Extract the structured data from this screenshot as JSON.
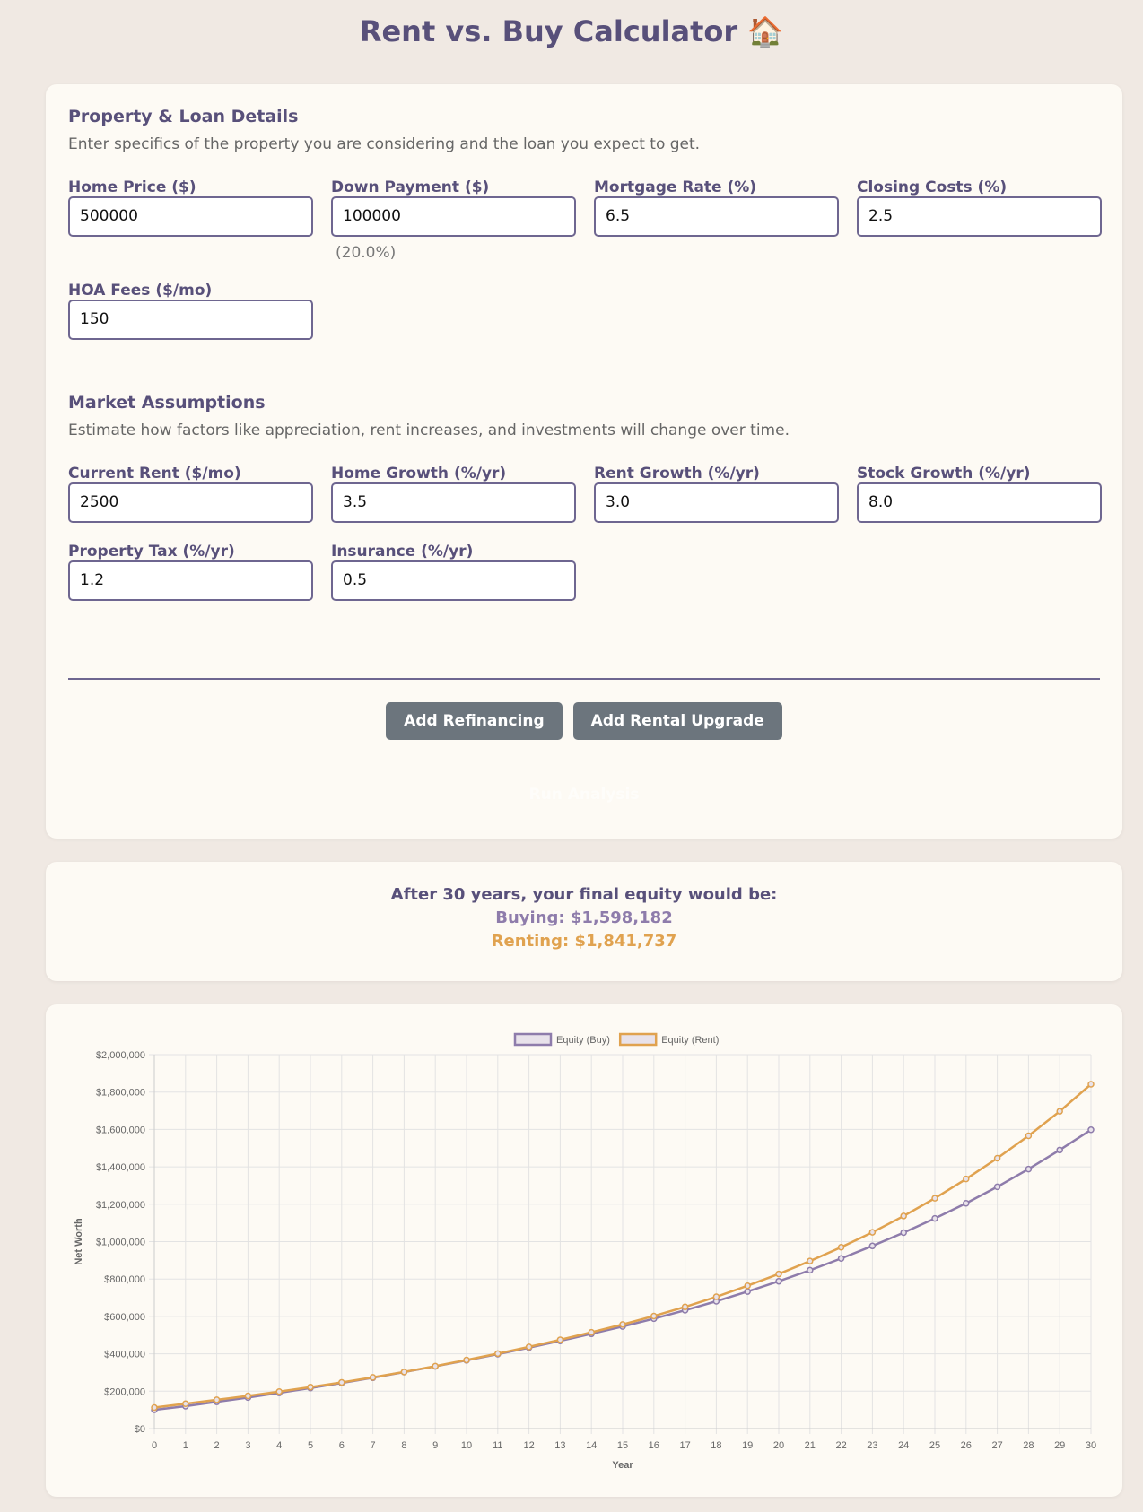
{
  "header": {
    "title": "Rent vs. Buy Calculator 🏠"
  },
  "sections": [
    {
      "title": "Property & Loan Details",
      "description": "Enter specifics of the property you are considering and the loan you expect to get.",
      "fields": [
        {
          "label": "Home Price ($)",
          "value": "500000"
        },
        {
          "label": "Down Payment ($)",
          "value": "100000",
          "note": "(20.0%)"
        },
        {
          "label": "Mortgage Rate (%)",
          "value": "6.5"
        },
        {
          "label": "Closing Costs (%)",
          "value": "2.5"
        },
        {
          "label": "HOA Fees ($/mo)",
          "value": "150"
        }
      ]
    },
    {
      "title": "Market Assumptions",
      "description": "Estimate how factors like appreciation, rent increases, and investments will change over time.",
      "fields": [
        {
          "label": "Current Rent ($/mo)",
          "value": "2500"
        },
        {
          "label": "Home Growth (%/yr)",
          "value": "3.5"
        },
        {
          "label": "Rent Growth (%/yr)",
          "value": "3.0"
        },
        {
          "label": "Stock Growth (%/yr)",
          "value": "8.0"
        },
        {
          "label": "Property Tax (%/yr)",
          "value": "1.2"
        },
        {
          "label": "Insurance (%/yr)",
          "value": "0.5"
        }
      ]
    }
  ],
  "buttons": [
    "Add Refinancing",
    "Add Rental Upgrade"
  ],
  "run_button": "Run Analysis",
  "results": {
    "heading": "After 30 years, your final equity would be:",
    "buying": "Buying: $1,598,182",
    "renting": "Renting: $1,841,737"
  },
  "chart_data": {
    "type": "line",
    "x_label": "Year",
    "y_label": "Net Worth",
    "x": [
      0,
      1,
      2,
      3,
      4,
      5,
      6,
      7,
      8,
      9,
      10,
      11,
      12,
      13,
      14,
      15,
      16,
      17,
      18,
      19,
      20,
      21,
      22,
      23,
      24,
      25,
      26,
      27,
      28,
      29,
      30
    ],
    "xlim": [
      0,
      30
    ],
    "series": [
      {
        "name": "Equity (Buy)",
        "color": "#8e7cab",
        "values": [
          100000,
          120000,
          143000,
          166000,
          191000,
          217000,
          244000,
          272000,
          302000,
          333000,
          365000,
          398000,
          433000,
          469000,
          507000,
          546000,
          588000,
          633000,
          681000,
          733000,
          788000,
          847000,
          910000,
          977000,
          1048000,
          1124000,
          1205000,
          1293000,
          1388000,
          1490000,
          1598182
        ]
      },
      {
        "name": "Equity (Rent)",
        "color": "#e0a24f",
        "values": [
          112500,
          133000,
          154000,
          175000,
          198000,
          222000,
          247000,
          274000,
          303000,
          334000,
          367000,
          401000,
          437000,
          475000,
          515000,
          557000,
          602000,
          651000,
          705000,
          764000,
          827000,
          896000,
          970000,
          1050000,
          1137000,
          1232000,
          1335000,
          1446000,
          1566000,
          1697000,
          1841737
        ]
      }
    ],
    "ylim": [
      0,
      2000000
    ],
    "yticks": [
      {
        "value": 0,
        "label": "$0"
      },
      {
        "value": 200000,
        "label": "$200,000"
      },
      {
        "value": 400000,
        "label": "$400,000"
      },
      {
        "value": 600000,
        "label": "$600,000"
      },
      {
        "value": 800000,
        "label": "$800,000"
      },
      {
        "value": 1000000,
        "label": "$1,000,000"
      },
      {
        "value": 1200000,
        "label": "$1,200,000"
      },
      {
        "value": 1400000,
        "label": "$1,400,000"
      },
      {
        "value": 1600000,
        "label": "$1,600,000"
      },
      {
        "value": 1800000,
        "label": "$1,800,000"
      },
      {
        "value": 2000000,
        "label": "$2,000,000"
      }
    ],
    "grid": true,
    "legend": "top"
  }
}
